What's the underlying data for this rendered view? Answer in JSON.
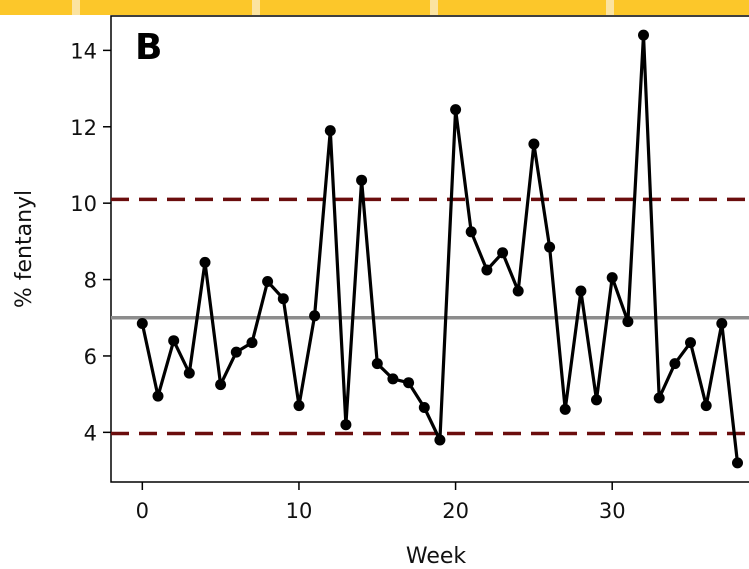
{
  "chart_data": {
    "type": "line",
    "panel_label": "B",
    "xlabel": "Week",
    "ylabel": "% fentanyl",
    "xlim": [
      -2,
      39.5
    ],
    "ylim": [
      2.7,
      14.9
    ],
    "xticks": [
      0,
      10,
      20,
      30
    ],
    "yticks": [
      4,
      6,
      8,
      10,
      12,
      14
    ],
    "grid": false,
    "legend": "none",
    "series": [
      {
        "x": [
          0,
          1,
          2,
          3,
          4,
          5,
          6,
          7,
          8,
          9,
          10,
          11,
          12,
          13,
          14,
          15,
          16,
          17,
          18,
          19,
          20,
          21,
          22,
          23,
          24,
          25,
          26,
          27,
          28,
          29,
          30,
          31,
          32,
          33,
          34,
          35,
          36,
          37,
          38
        ],
        "values": [
          6.85,
          4.95,
          6.4,
          5.55,
          8.45,
          5.25,
          6.1,
          6.35,
          7.95,
          7.5,
          4.7,
          7.05,
          11.9,
          4.2,
          10.6,
          5.8,
          5.4,
          5.3,
          4.65,
          3.8,
          12.45,
          9.25,
          8.25,
          8.7,
          7.7,
          11.55,
          8.85,
          4.6,
          7.7,
          4.85,
          8.05,
          6.9,
          14.4,
          4.9,
          5.8,
          6.35,
          4.7,
          6.85,
          3.2
        ]
      }
    ],
    "reference_lines": [
      {
        "kind": "center",
        "y": 7.0,
        "color": "#8c8c8c"
      },
      {
        "kind": "upper-limit",
        "y": 10.1,
        "color": "#6b0d0d"
      },
      {
        "kind": "lower-limit",
        "y": 3.97,
        "color": "#6b0d0d"
      }
    ],
    "colors": {
      "series": "#000000",
      "top_band": "#fcc72a"
    }
  }
}
